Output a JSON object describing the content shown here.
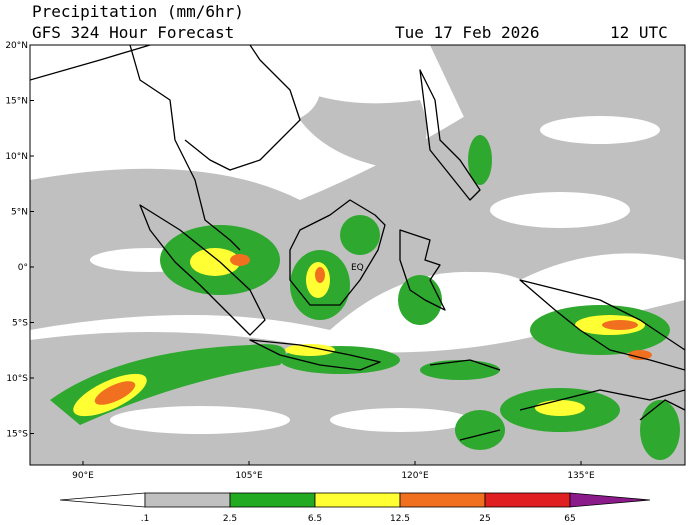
{
  "header": {
    "title": "Precipitation (mm/6hr)",
    "subtitle": "GFS 324 Hour Forecast",
    "date": "Tue 17 Feb 2026",
    "time": "12 UTC"
  },
  "map": {
    "lat_labels": [
      "20°N",
      "15°N",
      "10°N",
      "5°N",
      "0°",
      "5°S",
      "10°S",
      "15°S"
    ],
    "lon_labels": [
      "90°E",
      "105°E",
      "120°E",
      "135°E"
    ],
    "equator_label": "EQ"
  },
  "colorbar": {
    "labels": [
      ".1",
      "2.5",
      "6.5",
      "12.5",
      "25",
      "65"
    ]
  }
}
